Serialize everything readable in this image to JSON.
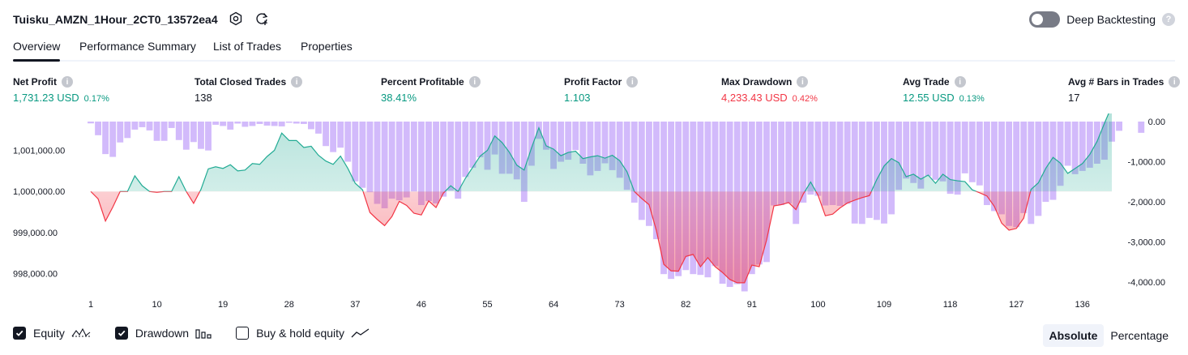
{
  "strategy": {
    "title": "Tuisku_AMZN_1Hour_2CT0_13572ea4"
  },
  "deep_backtesting": {
    "label": "Deep Backtesting",
    "help": "?"
  },
  "tabs": [
    "Overview",
    "Performance Summary",
    "List of Trades",
    "Properties"
  ],
  "metrics": {
    "net_profit": {
      "label": "Net Profit",
      "value": "1,731.23 USD",
      "pct": "0.17%"
    },
    "total_closed_trades": {
      "label": "Total Closed Trades",
      "value": "138"
    },
    "percent_profitable": {
      "label": "Percent Profitable",
      "value": "38.41%"
    },
    "profit_factor": {
      "label": "Profit Factor",
      "value": "1.103"
    },
    "max_drawdown": {
      "label": "Max Drawdown",
      "value": "4,233.43 USD",
      "pct": "0.42%"
    },
    "avg_trade": {
      "label": "Avg Trade",
      "value": "12.55 USD",
      "pct": "0.13%"
    },
    "avg_bars": {
      "label": "Avg # Bars in Trades",
      "value": "17"
    }
  },
  "info_glyph": "i",
  "legend": {
    "equity": "Equity",
    "drawdown": "Drawdown",
    "buy_hold": "Buy & hold equity"
  },
  "view_mode": {
    "absolute": "Absolute",
    "percentage": "Percentage",
    "selected": "Absolute"
  },
  "colors": {
    "green": "#089981",
    "red": "#f23645",
    "drawdown_bar": "#cdb2fb",
    "equity_line": "#22ab94",
    "loss_line": "#f23645"
  },
  "chart_data": {
    "type": "area",
    "x_ticks": [
      "1",
      "10",
      "19",
      "28",
      "37",
      "46",
      "55",
      "64",
      "73",
      "82",
      "91",
      "100",
      "109",
      "118",
      "127",
      "136"
    ],
    "y_left_ticks": [
      "1,001,000.00",
      "1,000,000.00",
      "999,000.00",
      "998,000.00"
    ],
    "y_right_ticks": [
      "0.00",
      "-1,000.00",
      "-2,000.00",
      "-3,000.00",
      "-4,000.00"
    ],
    "equity_baseline": 1000000,
    "y_left_range": [
      997600,
      1001700
    ],
    "y_right_range": [
      -4200,
      0
    ],
    "equity": [
      1000000,
      999820,
      999280,
      999620,
      1000000,
      1000000,
      1000380,
      1000140,
      1000000,
      999980,
      1000000,
      1000000,
      1000360,
      1000000,
      999710,
      1000050,
      1000550,
      1000600,
      1000560,
      1000650,
      1000500,
      1000520,
      1000680,
      1000660,
      1000850,
      1001000,
      1001420,
      1001240,
      1001240,
      1001070,
      1001100,
      1000880,
      1000740,
      1000660,
      1000860,
      1000560,
      1000200,
      1000040,
      999490,
      999320,
      999170,
      999390,
      999760,
      999660,
      999470,
      999430,
      999770,
      999610,
      999960,
      1000140,
      1000000,
      1000320,
      1000590,
      1000860,
      1001000,
      1001350,
      1001190,
      1000950,
      1000640,
      1000520,
      1001060,
      1001550,
      1001110,
      1001030,
      1000870,
      1000950,
      1000980,
      1000800,
      1000840,
      1000870,
      1000810,
      1000880,
      1000750,
      1000480,
      1000000,
      999830,
      999680,
      999050,
      998230,
      998070,
      998060,
      998420,
      998470,
      998170,
      998390,
      998170,
      998030,
      997860,
      997780,
      997780,
      998210,
      998170,
      998820,
      999650,
      999680,
      999730,
      999560,
      999940,
      1000230,
      999910,
      999410,
      999450,
      999600,
      999720,
      999790,
      999850,
      999900,
      1000290,
      1000620,
      1000800,
      1000700,
      1000360,
      1000420,
      1000300,
      1000400,
      1000200,
      1000420,
      1000290,
      1000260,
      1000240,
      1000040,
      999970,
      999890,
      999640,
      999230,
      999060,
      999100,
      999350,
      1000050,
      1000210,
      1000560,
      1000830,
      1000690,
      1000440,
      1000560,
      1000680,
      1000900,
      1001220,
      1001660,
      1002080
    ],
    "drawdown": [
      -45,
      -340,
      -810,
      -880,
      -520,
      -410,
      -200,
      -140,
      -220,
      -480,
      -480,
      -160,
      -460,
      -700,
      -510,
      -680,
      -720,
      -80,
      -110,
      -200,
      -50,
      -130,
      -110,
      -60,
      -100,
      -110,
      -120,
      -30,
      -50,
      -60,
      -190,
      -300,
      -610,
      -760,
      -650,
      -1000,
      -1490,
      -1650,
      -1760,
      -2050,
      -2160,
      -1920,
      -1960,
      -1890,
      -1740,
      -2080,
      -1980,
      -2040,
      -1870,
      -1720,
      -1920,
      -1380,
      -1150,
      -890,
      -1200,
      -820,
      -1300,
      -1300,
      -1440,
      -2000,
      -1100,
      -430,
      -700,
      -1180,
      -1000,
      -950,
      -710,
      -1050,
      -1340,
      -1230,
      -1040,
      -1210,
      -1400,
      -1700,
      -2020,
      -2450,
      -2600,
      -2930,
      -3800,
      -3920,
      -3850,
      -3700,
      -3800,
      -3820,
      -3880,
      -3600,
      -4040,
      -4120,
      -4050,
      -4230,
      -3800,
      -3560,
      -3500,
      -2090,
      -2080,
      -2040,
      -2550,
      -2020,
      -1820,
      -1850,
      -2090,
      -2080,
      -2100,
      -2050,
      -2540,
      -2550,
      -2400,
      -2450,
      -2540,
      -2310,
      -1700,
      -1420,
      -1530,
      -1670,
      -1360,
      -1450,
      -1490,
      -1800,
      -1820,
      -1290,
      -1510,
      -1590,
      -2080,
      -2230,
      -2310,
      -2600,
      -2630,
      -2280,
      -2550,
      -2350,
      -2000,
      -1950,
      -1600,
      -1100,
      -1310,
      -1230,
      -1150,
      -1050,
      -950,
      -500,
      -230,
      0,
      0,
      -280
    ]
  }
}
